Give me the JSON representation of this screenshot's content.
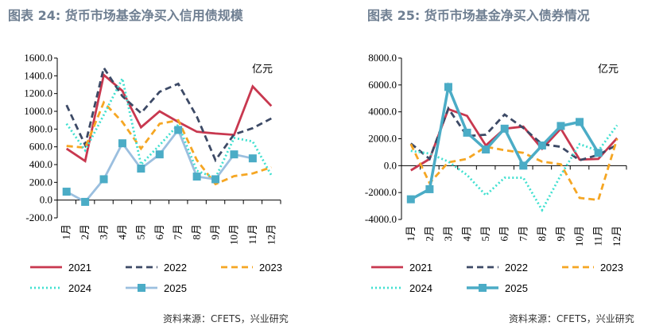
{
  "chart_data": [
    {
      "type": "line",
      "title": "图表 24: 货币市场基金净买入信用债规模",
      "unit": "亿元",
      "ylim": [
        -200,
        1600
      ],
      "yticks": [
        "-200.0",
        "0.0",
        "200.0",
        "400.0",
        "600.0",
        "800.0",
        "1000.0",
        "1200.0",
        "1400.0",
        "1600.0"
      ],
      "categories": [
        "1月",
        "2月",
        "3月",
        "4月",
        "5月",
        "6月",
        "7月",
        "8月",
        "9月",
        "10月",
        "11月",
        "12月"
      ],
      "legend": "bottom",
      "source": "资料来源：CFETS，兴业研究",
      "series": [
        {
          "name": "2021",
          "color": "#c8384f",
          "style": "solid",
          "values": [
            580,
            440,
            1410,
            1230,
            820,
            1000,
            880,
            770,
            750,
            735,
            1280,
            1060
          ]
        },
        {
          "name": "2022",
          "color": "#3d4a66",
          "style": "dash",
          "values": [
            1070,
            620,
            1490,
            1170,
            980,
            1220,
            1310,
            940,
            450,
            740,
            810,
            920
          ]
        },
        {
          "name": "2023",
          "color": "#f5a623",
          "style": "dash",
          "values": [
            610,
            590,
            1100,
            880,
            580,
            860,
            900,
            450,
            180,
            270,
            300,
            370
          ]
        },
        {
          "name": "2024",
          "color": "#40e0d0",
          "style": "dot",
          "values": [
            860,
            560,
            960,
            1370,
            400,
            620,
            850,
            330,
            250,
            700,
            660,
            280
          ]
        },
        {
          "name": "2025",
          "color": "#9bbfdf",
          "marker": "#4bacc6",
          "style": "marker",
          "values": [
            95,
            -20,
            235,
            640,
            355,
            515,
            790,
            265,
            235,
            515,
            470,
            null
          ]
        }
      ]
    },
    {
      "type": "line",
      "title": "图表 25: 货币市场基金净买入债券情况",
      "unit": "亿元",
      "ylim": [
        -4000,
        8000
      ],
      "yticks": [
        "-4000.0",
        "-2000.0",
        "0.0",
        "2000.0",
        "4000.0",
        "6000.0",
        "8000.0"
      ],
      "categories": [
        "1月",
        "2月",
        "3月",
        "4月",
        "5月",
        "6月",
        "7月",
        "8月",
        "9月",
        "10月",
        "11月",
        "12月"
      ],
      "legend": "bottom",
      "source": "资料来源：CFETS，兴业研究",
      "series": [
        {
          "name": "2021",
          "color": "#c8384f",
          "style": "solid",
          "values": [
            -350,
            500,
            4200,
            3700,
            1500,
            2750,
            2900,
            1250,
            2750,
            450,
            500,
            2050
          ]
        },
        {
          "name": "2022",
          "color": "#3d4a66",
          "style": "dash",
          "values": [
            1650,
            500,
            4250,
            2200,
            2300,
            3800,
            2800,
            1600,
            1400,
            400,
            800,
            1550
          ]
        },
        {
          "name": "2023",
          "color": "#f5a623",
          "style": "dash",
          "values": [
            1600,
            -1300,
            250,
            500,
            1400,
            1150,
            950,
            300,
            100,
            -2400,
            -2550,
            2000
          ]
        },
        {
          "name": "2024",
          "color": "#40e0d0",
          "style": "dot",
          "values": [
            1100,
            900,
            300,
            -700,
            -2200,
            -900,
            -900,
            -3300,
            -700,
            1600,
            1100,
            3000
          ]
        },
        {
          "name": "2025",
          "color": "#4bacc6",
          "marker": "#4bacc6",
          "style": "marker",
          "thick": true,
          "values": [
            -2500,
            -1750,
            5850,
            2450,
            1200,
            2750,
            0,
            1500,
            2950,
            3250,
            950,
            null
          ]
        }
      ]
    }
  ]
}
